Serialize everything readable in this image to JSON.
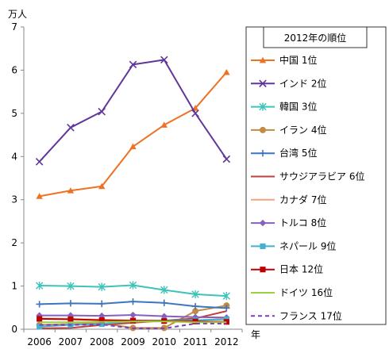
{
  "chart_data": {
    "type": "line",
    "y_unit_label": "万人",
    "x_unit_label": "年",
    "legend_title": "2012年の順位",
    "legend_position": "right",
    "grid": false,
    "ylim": [
      0,
      7
    ],
    "y_ticks": [
      "0",
      "1",
      "2",
      "3",
      "4",
      "5",
      "6",
      "7"
    ],
    "categories": [
      "2006",
      "2007",
      "2008",
      "2009",
      "2010",
      "2011",
      "2012"
    ],
    "series": [
      {
        "name": "中国 1位",
        "color": "#ED7222",
        "marker": "triangle",
        "dash": false,
        "values": [
          3.08,
          3.21,
          3.31,
          4.23,
          4.73,
          5.12,
          5.95
        ]
      },
      {
        "name": "インド 2位",
        "color": "#60379A",
        "marker": "x",
        "dash": false,
        "values": [
          3.88,
          4.67,
          5.04,
          6.13,
          6.24,
          5.0,
          3.94
        ]
      },
      {
        "name": "韓国 3位",
        "color": "#3CC3BA",
        "marker": "star",
        "dash": false,
        "values": [
          1.01,
          1.0,
          0.98,
          1.02,
          0.91,
          0.81,
          0.77
        ]
      },
      {
        "name": "イラン 4位",
        "color": "#C28A45",
        "marker": "circle",
        "dash": false,
        "values": [
          0.1,
          0.12,
          0.14,
          0.03,
          0.03,
          0.42,
          0.55
        ]
      },
      {
        "name": "台湾 5位",
        "color": "#3D76BB",
        "marker": "plus",
        "dash": false,
        "values": [
          0.58,
          0.6,
          0.59,
          0.64,
          0.61,
          0.53,
          0.49
        ]
      },
      {
        "name": "サウジアラビア 6位",
        "color": "#BF3F3C",
        "marker": "none",
        "dash": false,
        "values": [
          0.02,
          0.03,
          0.1,
          0.15,
          0.2,
          0.25,
          0.42
        ]
      },
      {
        "name": "カナダ 7位",
        "color": "#F2A57E",
        "marker": "none",
        "dash": false,
        "values": [
          0.25,
          0.24,
          0.22,
          0.2,
          0.2,
          0.2,
          0.25
        ]
      },
      {
        "name": "トルコ 8位",
        "color": "#8660BE",
        "marker": "diamond",
        "dash": false,
        "values": [
          0.32,
          0.32,
          0.31,
          0.33,
          0.3,
          0.28,
          0.27
        ]
      },
      {
        "name": "ネパール 9位",
        "color": "#47AFD1",
        "marker": "square",
        "dash": false,
        "values": [
          0.06,
          0.1,
          0.12,
          0.19,
          0.2,
          0.21,
          0.23
        ]
      },
      {
        "name": "日本 12位",
        "color": "#C00000",
        "marker": "square",
        "dash": false,
        "values": [
          0.24,
          0.23,
          0.21,
          0.2,
          0.19,
          0.18,
          0.17
        ]
      },
      {
        "name": "ドイツ 16位",
        "color": "#9BD23B",
        "marker": "none",
        "dash": false,
        "values": [
          0.16,
          0.16,
          0.17,
          0.18,
          0.18,
          0.16,
          0.16
        ]
      },
      {
        "name": "フランス 17位",
        "color": "#7A3CC4",
        "marker": "none",
        "dash": true,
        "values": [
          0.1,
          0.1,
          0.11,
          0.02,
          0.02,
          0.13,
          0.13
        ]
      }
    ]
  }
}
